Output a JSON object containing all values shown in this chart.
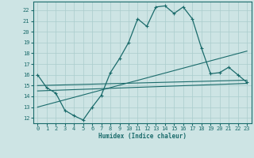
{
  "xlabel": "Humidex (Indice chaleur)",
  "bg_color": "#cde4e4",
  "grid_color": "#aacccc",
  "line_color": "#1a6b6b",
  "xlim": [
    -0.5,
    23.5
  ],
  "ylim": [
    11.5,
    22.8
  ],
  "xticks": [
    0,
    1,
    2,
    3,
    4,
    5,
    6,
    7,
    8,
    9,
    10,
    11,
    12,
    13,
    14,
    15,
    16,
    17,
    18,
    19,
    20,
    21,
    22,
    23
  ],
  "yticks": [
    12,
    13,
    14,
    15,
    16,
    17,
    18,
    19,
    20,
    21,
    22
  ],
  "line1_x": [
    0,
    1,
    2,
    3,
    4,
    5,
    6,
    7,
    8,
    9,
    10,
    11,
    12,
    13,
    14,
    15,
    16,
    17,
    18,
    19,
    20,
    21,
    22,
    23
  ],
  "line1_y": [
    16.0,
    14.8,
    14.3,
    12.7,
    12.2,
    11.8,
    13.0,
    14.1,
    16.2,
    17.5,
    19.0,
    21.2,
    20.5,
    22.3,
    22.4,
    21.7,
    22.3,
    21.2,
    18.5,
    16.1,
    16.2,
    16.7,
    16.0,
    15.3
  ],
  "line2_x": [
    0,
    23
  ],
  "line2_y": [
    13.0,
    18.2
  ],
  "line3_x": [
    0,
    23
  ],
  "line3_y": [
    14.5,
    15.2
  ],
  "line4_x": [
    0,
    23
  ],
  "line4_y": [
    15.0,
    15.5
  ]
}
